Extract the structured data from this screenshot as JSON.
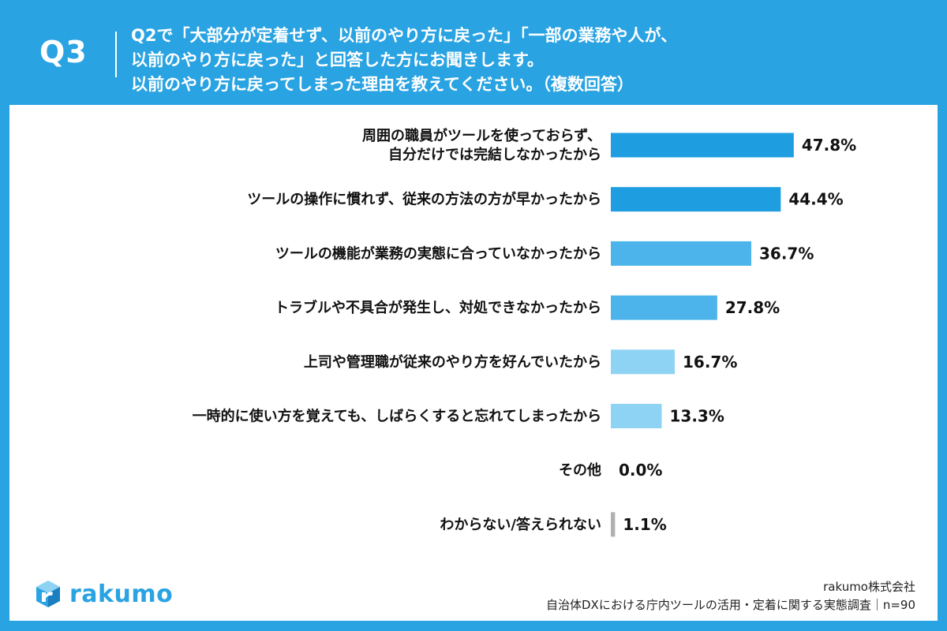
{
  "header": {
    "qnum": "Q3",
    "lines": [
      "Q2で「大部分が定着せず、以前のやり方に戻った」「一部の業務や人が、",
      "以前のやり方に戻った」と回答した方にお聞きします。",
      "以前のやり方に戻ってしまった理由を教えてください。（複数回答）"
    ]
  },
  "colors": {
    "background": "#2aa3e2",
    "bar_dark": "#1e9ee0",
    "bar_mid": "#4cb4ea",
    "bar_light": "#8ed3f4",
    "bar_gray": "#b0b0b0"
  },
  "chart_data": {
    "type": "bar",
    "orientation": "horizontal",
    "unit": "%",
    "categories": [
      "周囲の職員がツールを使っておらず、\n自分だけでは完結しなかったから",
      "ツールの操作に慣れず、従来の方法の方が早かったから",
      "ツールの機能が業務の実態に合っていなかったから",
      "トラブルや不具合が発生し、対処できなかったから",
      "上司や管理職が従来のやり方を好んでいたから",
      "一時的に使い方を覚えても、しばらくすると忘れてしまったから",
      "その他",
      "わからない/答えられない"
    ],
    "values": [
      47.8,
      44.4,
      36.7,
      27.8,
      16.7,
      13.3,
      0.0,
      1.1
    ],
    "value_labels": [
      "47.8%",
      "44.4%",
      "36.7%",
      "27.8%",
      "16.7%",
      "13.3%",
      "0.0%",
      "1.1%"
    ],
    "bar_colors": [
      "#1e9ee0",
      "#1e9ee0",
      "#4cb4ea",
      "#4cb4ea",
      "#8ed3f4",
      "#8ed3f4",
      "#8ed3f4",
      "#b0b0b0"
    ]
  },
  "footer": {
    "logo_text": "rakumo",
    "company": "rakumo株式会社",
    "survey": "自治体DXにおける庁内ツールの活用・定着に関する実態調査｜n=90"
  }
}
